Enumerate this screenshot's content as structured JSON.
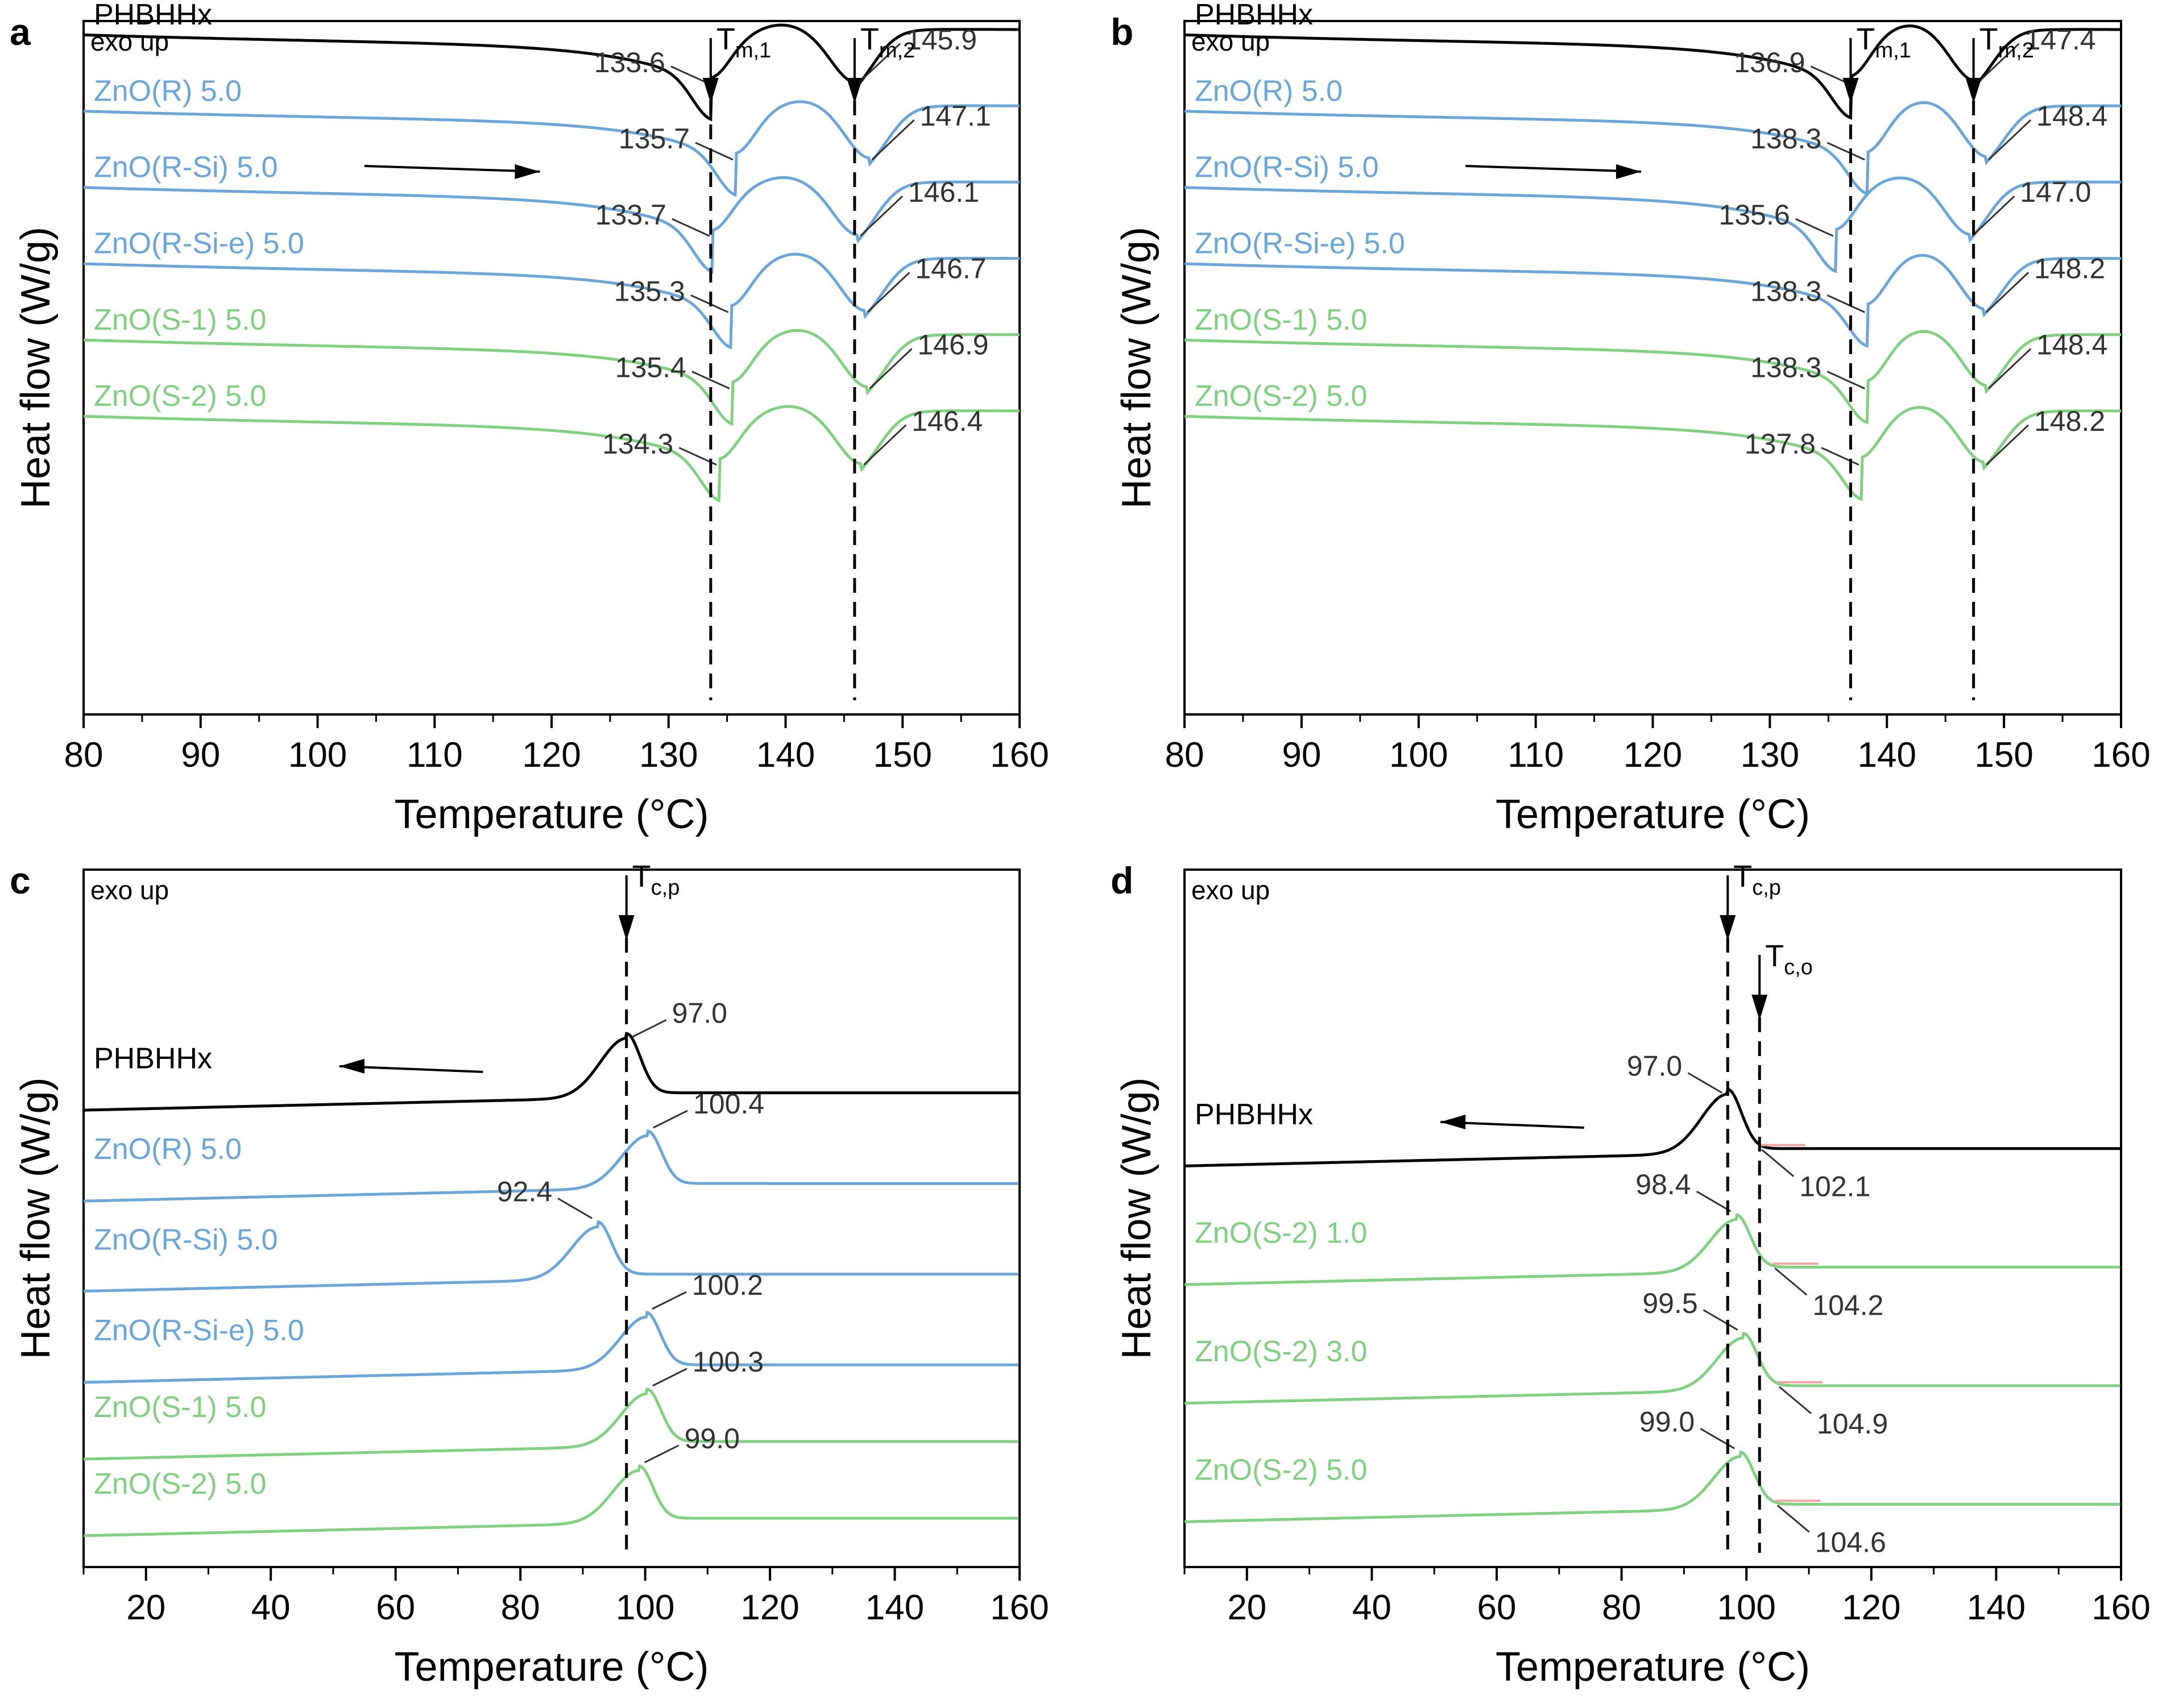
{
  "colors": {
    "PHBHHx": "#000000",
    "blue": "#6aa6d9",
    "green": "#7fd17f",
    "onset_line": "#f4a3a3"
  },
  "common": {
    "xlabel": "Temperature (°C)",
    "ylabel": "Heat flow (W/g)",
    "exo": "exo up"
  },
  "chart_data": [
    {
      "panel": "a",
      "type": "line",
      "mode": "heating",
      "xlim": [
        80,
        160
      ],
      "xticks": [
        80,
        90,
        100,
        110,
        120,
        130,
        140,
        150,
        160
      ],
      "markers": [
        {
          "label": "T",
          "sub": "m,1",
          "x": 133.6
        },
        {
          "label": "T",
          "sub": "m,2",
          "x": 145.9
        }
      ],
      "arrow": {
        "direction": "right",
        "x_from": 104,
        "x_to": 119
      },
      "series": [
        {
          "name": "PHBHHx",
          "color": "black",
          "base": 0.96,
          "peaks": [
            {
              "x": 133.6,
              "value": "133.6"
            },
            {
              "x": 145.9,
              "value": "145.9"
            }
          ]
        },
        {
          "name": "ZnO(R) 5.0",
          "color": "blue",
          "base": 0.85,
          "peaks": [
            {
              "x": 135.7,
              "value": "135.7"
            },
            {
              "x": 147.1,
              "value": "147.1"
            }
          ]
        },
        {
          "name": "ZnO(R-Si) 5.0",
          "color": "blue",
          "base": 0.74,
          "peaks": [
            {
              "x": 133.7,
              "value": "133.7"
            },
            {
              "x": 146.1,
              "value": "146.1"
            }
          ]
        },
        {
          "name": "ZnO(R-Si-e) 5.0",
          "color": "blue",
          "base": 0.63,
          "peaks": [
            {
              "x": 135.3,
              "value": "135.3"
            },
            {
              "x": 146.7,
              "value": "146.7"
            }
          ]
        },
        {
          "name": "ZnO(S-1) 5.0",
          "color": "green",
          "base": 0.52,
          "peaks": [
            {
              "x": 135.4,
              "value": "135.4"
            },
            {
              "x": 146.9,
              "value": "146.9"
            }
          ]
        },
        {
          "name": "ZnO(S-2) 5.0",
          "color": "green",
          "base": 0.41,
          "peaks": [
            {
              "x": 134.3,
              "value": "134.3"
            },
            {
              "x": 146.4,
              "value": "146.4"
            }
          ]
        }
      ]
    },
    {
      "panel": "b",
      "type": "line",
      "mode": "heating",
      "xlim": [
        80,
        160
      ],
      "xticks": [
        80,
        90,
        100,
        110,
        120,
        130,
        140,
        150,
        160
      ],
      "markers": [
        {
          "label": "T",
          "sub": "m,1",
          "x": 136.9
        },
        {
          "label": "T",
          "sub": "m,2",
          "x": 147.4
        }
      ],
      "arrow": {
        "direction": "right",
        "x_from": 104,
        "x_to": 119
      },
      "series": [
        {
          "name": "PHBHHx",
          "color": "black",
          "base": 0.96,
          "peaks": [
            {
              "x": 136.9,
              "value": "136.9"
            },
            {
              "x": 147.4,
              "value": "147.4"
            }
          ]
        },
        {
          "name": "ZnO(R) 5.0",
          "color": "blue",
          "base": 0.85,
          "peaks": [
            {
              "x": 138.3,
              "value": "138.3"
            },
            {
              "x": 148.4,
              "value": "148.4"
            }
          ]
        },
        {
          "name": "ZnO(R-Si) 5.0",
          "color": "blue",
          "base": 0.74,
          "peaks": [
            {
              "x": 135.6,
              "value": "135.6"
            },
            {
              "x": 147.0,
              "value": "147.0"
            }
          ]
        },
        {
          "name": "ZnO(R-Si-e) 5.0",
          "color": "blue",
          "base": 0.63,
          "peaks": [
            {
              "x": 138.3,
              "value": "138.3"
            },
            {
              "x": 148.2,
              "value": "148.2"
            }
          ]
        },
        {
          "name": "ZnO(S-1) 5.0",
          "color": "green",
          "base": 0.52,
          "peaks": [
            {
              "x": 138.3,
              "value": "138.3"
            },
            {
              "x": 148.4,
              "value": "148.4"
            }
          ]
        },
        {
          "name": "ZnO(S-2) 5.0",
          "color": "green",
          "base": 0.41,
          "peaks": [
            {
              "x": 137.8,
              "value": "137.8"
            },
            {
              "x": 148.2,
              "value": "148.2"
            }
          ]
        }
      ]
    },
    {
      "panel": "c",
      "type": "line",
      "mode": "cooling",
      "xlim": [
        10,
        160
      ],
      "xticks": [
        20,
        40,
        60,
        80,
        100,
        120,
        140,
        160
      ],
      "markers": [
        {
          "label": "T",
          "sub": "c,p",
          "x": 97.0
        }
      ],
      "arrow": {
        "direction": "left",
        "x_from": 74,
        "x_to": 51
      },
      "series": [
        {
          "name": "PHBHHx",
          "color": "black",
          "base": 0.68,
          "peak": {
            "x": 97.0,
            "value": "97.0"
          }
        },
        {
          "name": "ZnO(R) 5.0",
          "color": "blue",
          "base": 0.55,
          "peak": {
            "x": 100.4,
            "value": "100.4"
          }
        },
        {
          "name": "ZnO(R-Si) 5.0",
          "color": "blue",
          "base": 0.42,
          "peak": {
            "x": 92.4,
            "value": "92.4"
          }
        },
        {
          "name": "ZnO(R-Si-e) 5.0",
          "color": "blue",
          "base": 0.29,
          "peak": {
            "x": 100.2,
            "value": "100.2"
          }
        },
        {
          "name": "ZnO(S-1) 5.0",
          "color": "green",
          "base": 0.18,
          "peak": {
            "x": 100.3,
            "value": "100.3"
          }
        },
        {
          "name": "ZnO(S-2) 5.0",
          "color": "green",
          "base": 0.07,
          "peak": {
            "x": 99.0,
            "value": "99.0"
          }
        }
      ]
    },
    {
      "panel": "d",
      "type": "line",
      "mode": "cooling",
      "xlim": [
        10,
        160
      ],
      "xticks": [
        20,
        40,
        60,
        80,
        100,
        120,
        140,
        160
      ],
      "markers": [
        {
          "label": "T",
          "sub": "c,p",
          "x": 97.0
        },
        {
          "label": "T",
          "sub": "c,o",
          "x": 102.1
        }
      ],
      "arrow": {
        "direction": "left",
        "x_from": 74,
        "x_to": 51
      },
      "series": [
        {
          "name": "PHBHHx",
          "color": "black",
          "base": 0.6,
          "peak": {
            "x": 97.0,
            "value": "97.0"
          },
          "onset": {
            "x": 102.1,
            "value": "102.1"
          }
        },
        {
          "name": "ZnO(S-2) 1.0",
          "color": "green",
          "base": 0.43,
          "peak": {
            "x": 98.4,
            "value": "98.4"
          },
          "onset": {
            "x": 104.2,
            "value": "104.2"
          }
        },
        {
          "name": "ZnO(S-2) 3.0",
          "color": "green",
          "base": 0.26,
          "peak": {
            "x": 99.5,
            "value": "99.5"
          },
          "onset": {
            "x": 104.9,
            "value": "104.9"
          }
        },
        {
          "name": "ZnO(S-2) 5.0",
          "color": "green",
          "base": 0.09,
          "peak": {
            "x": 99.0,
            "value": "99.0"
          },
          "onset": {
            "x": 104.6,
            "value": "104.6"
          }
        }
      ]
    }
  ]
}
